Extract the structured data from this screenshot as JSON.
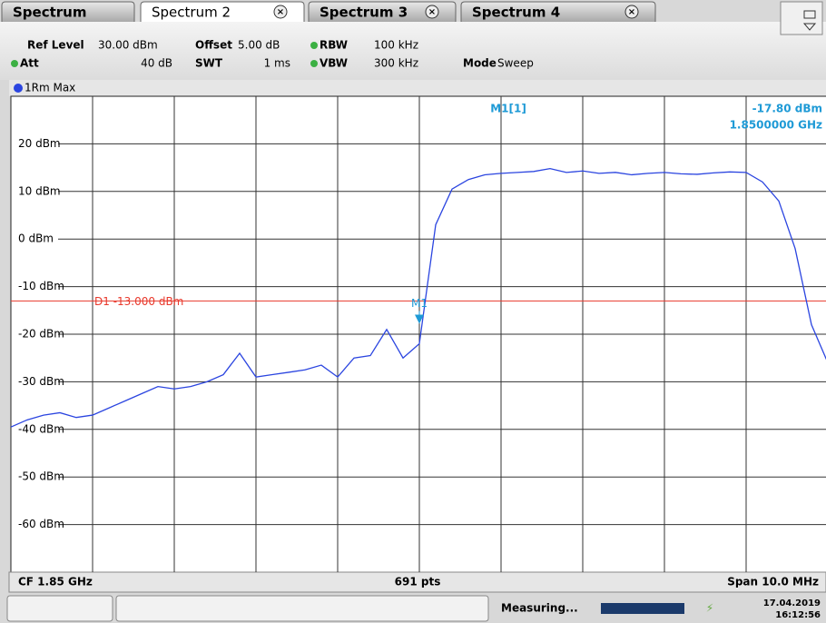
{
  "tabs": [
    "Spectrum",
    "Spectrum 2",
    "Spectrum 3",
    "Spectrum 4"
  ],
  "settings": [
    {
      "label": "Ref Level",
      "value": "30.00 dBm"
    },
    {
      "label": "Offset",
      "value": "5.00 dB"
    },
    {
      "label": "RBW",
      "value": "100 kHz"
    },
    {
      "label": "Att",
      "value": "40 dB"
    },
    {
      "label": "SWT",
      "value": "1 ms"
    },
    {
      "label": "VBW",
      "value": "300 kHz"
    },
    {
      "label": "Mode",
      "value": "Sweep"
    }
  ],
  "chart_data": {
    "type": "line",
    "trace_label": "1Rm Max",
    "color": "#2b45e0",
    "grid": true,
    "ylim": [
      -70,
      30
    ],
    "yticks": [
      {
        "value": 20,
        "label": "20 dBm"
      },
      {
        "value": 10,
        "label": "10 dBm"
      },
      {
        "value": 0,
        "label": "0 dBm"
      },
      {
        "value": -10,
        "label": "-10 dBm"
      },
      {
        "value": -20,
        "label": "-20 dBm"
      },
      {
        "value": -30,
        "label": "-30 dBm"
      },
      {
        "value": -40,
        "label": "-40 dBm"
      },
      {
        "value": -50,
        "label": "-50 dBm"
      },
      {
        "value": -60,
        "label": "-60 dBm"
      }
    ],
    "values": [
      -39.5,
      -38,
      -37,
      -36.5,
      -37.5,
      -37,
      -35.5,
      -34,
      -32.5,
      -31,
      -31.5,
      -31,
      -30,
      -28.5,
      -24,
      -29,
      -28.5,
      -28,
      -27.5,
      -26.5,
      -29,
      -25,
      -24.5,
      -19,
      -25,
      -22,
      3,
      10.5,
      12.5,
      13.5,
      13.8,
      14,
      14.2,
      14.8,
      14,
      14.3,
      13.8,
      14,
      13.5,
      13.8,
      14,
      13.7,
      13.6,
      13.9,
      14.1,
      14,
      12,
      8,
      -2,
      -18,
      -26
    ],
    "display_line": {
      "value": -13,
      "label": "D1 -13.000 dBm",
      "color": "#e8392c"
    },
    "marker": {
      "name": "M1",
      "title": "M1[1]",
      "value": -17.8,
      "value_label": "-17.80 dBm",
      "frequency": "1.8500000 GHz",
      "color": "#1e9ad6"
    },
    "footer": {
      "left": "CF 1.85 GHz",
      "center": "691 pts",
      "right": "Span 10.0 MHz"
    }
  },
  "status": {
    "state": "Measuring...",
    "date": "17.04.2019",
    "time": "16:12:56"
  }
}
